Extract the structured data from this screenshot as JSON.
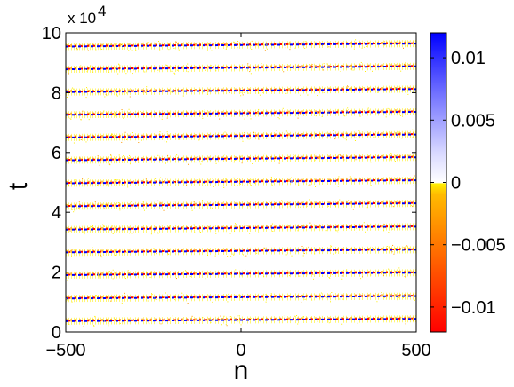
{
  "chart_data": {
    "type": "heatmap",
    "xlabel": "n",
    "ylabel": "t",
    "xlim": [
      -500,
      500
    ],
    "ylim": [
      0,
      100000
    ],
    "x_ticks": [
      -500,
      0,
      500
    ],
    "x_tick_labels": [
      "−500",
      "0",
      "500"
    ],
    "y_ticks": [
      0,
      20000,
      40000,
      60000,
      80000,
      100000
    ],
    "y_tick_labels": [
      "0",
      "2",
      "4",
      "6",
      "8",
      "10"
    ],
    "y_multiplier_label": "x 10",
    "y_multiplier_exponent": "4",
    "colorbar": {
      "range": [
        -0.012,
        0.012
      ],
      "ticks": [
        -0.01,
        -0.005,
        0,
        0.005,
        0.01
      ],
      "tick_labels": [
        "−0.01",
        "−0.005",
        "0",
        "0.005",
        "0.01"
      ],
      "colors": {
        "min": "#ff0000",
        "low_mid": "#ff9900",
        "just_below_zero": "#ffee00",
        "zero": "#ffffff",
        "mid_high": "#8080ff",
        "max": "#0000ff"
      }
    },
    "stripes": {
      "description_values": "diagonal travelling-wave stripes; t at n=-500 and n=500",
      "t_at_n_min": [
        3600,
        11200,
        19000,
        26600,
        34200,
        42000,
        49700,
        57400,
        65000,
        72600,
        80200,
        87800,
        95400
      ],
      "t_at_n_max": [
        4400,
        12000,
        19800,
        27500,
        35200,
        43000,
        50700,
        58400,
        66000,
        73600,
        81200,
        88800,
        96400
      ]
    },
    "grid": false
  }
}
